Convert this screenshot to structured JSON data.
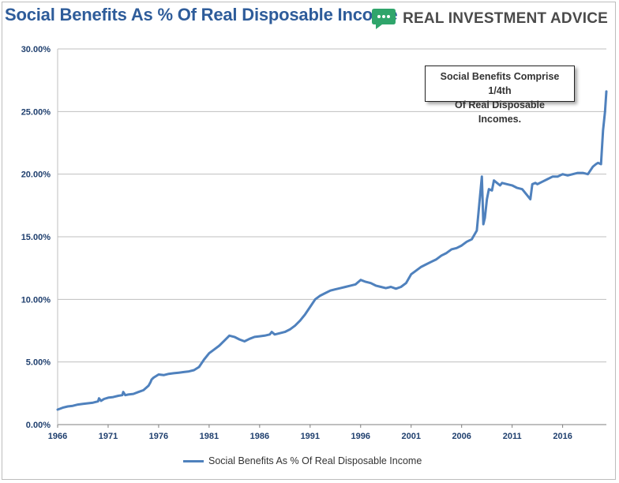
{
  "header": {
    "title": "Social Benefits As % Of Real Disposable Income",
    "brand": "REAL INVESTMENT ADVICE",
    "brand_icon": "chat-bubble-icon"
  },
  "annotation": {
    "line1": "Social Benefits Comprise 1/4th",
    "line2": "Of Real Disposable Incomes."
  },
  "colors": {
    "title": "#2e5c9a",
    "series": "#4f81bd",
    "grid": "#bfbfbf",
    "tick_text": "#1f3f6e",
    "logo_green": "#2fa56b"
  },
  "chart_data": {
    "type": "line",
    "title": "Social Benefits As % Of Real Disposable Income",
    "xlabel": "",
    "ylabel": "",
    "xlim": [
      1966,
      2020.33
    ],
    "ylim": [
      0,
      30
    ],
    "x_ticks": [
      "1966",
      "1971",
      "1976",
      "1981",
      "1986",
      "1991",
      "1996",
      "2001",
      "2006",
      "2011",
      "2016"
    ],
    "y_ticks": [
      "0.00%",
      "5.00%",
      "10.00%",
      "15.00%",
      "20.00%",
      "25.00%",
      "30.00%"
    ],
    "grid": "horizontal",
    "legend": "bottom",
    "series": [
      {
        "name": "Social Benefits As % Of Real Disposable Income",
        "x": [
          1966.0,
          1966.5,
          1967.0,
          1967.5,
          1968.0,
          1968.5,
          1969.0,
          1969.5,
          1970.0,
          1970.1,
          1970.3,
          1970.6,
          1971.0,
          1971.5,
          1972.0,
          1972.4,
          1972.5,
          1972.7,
          1973.0,
          1973.5,
          1974.0,
          1974.5,
          1975.0,
          1975.2,
          1975.3,
          1975.5,
          1976.0,
          1976.5,
          1977.0,
          1977.5,
          1978.0,
          1978.5,
          1979.0,
          1979.5,
          1980.0,
          1980.5,
          1981.0,
          1981.5,
          1982.0,
          1982.5,
          1983.0,
          1983.5,
          1984.0,
          1984.5,
          1985.0,
          1985.5,
          1986.0,
          1986.5,
          1987.0,
          1987.2,
          1987.5,
          1988.0,
          1988.5,
          1989.0,
          1989.5,
          1990.0,
          1990.5,
          1991.0,
          1991.5,
          1992.0,
          1992.5,
          1993.0,
          1993.5,
          1994.0,
          1994.5,
          1995.0,
          1995.5,
          1996.0,
          1996.5,
          1997.0,
          1997.5,
          1998.0,
          1998.5,
          1999.0,
          1999.5,
          2000.0,
          2000.5,
          2001.0,
          2001.5,
          2002.0,
          2002.5,
          2003.0,
          2003.5,
          2004.0,
          2004.5,
          2005.0,
          2005.5,
          2006.0,
          2006.5,
          2007.0,
          2007.5,
          2008.0,
          2008.15,
          2008.3,
          2008.5,
          2008.7,
          2009.0,
          2009.2,
          2009.5,
          2009.8,
          2010.0,
          2010.5,
          2011.0,
          2011.5,
          2012.0,
          2012.5,
          2012.8,
          2013.0,
          2013.3,
          2013.5,
          2014.0,
          2014.5,
          2015.0,
          2015.5,
          2016.0,
          2016.5,
          2017.0,
          2017.5,
          2018.0,
          2018.5,
          2019.0,
          2019.3,
          2019.5,
          2019.8,
          2020.0,
          2020.2,
          2020.33
        ],
        "y": [
          1.2,
          1.35,
          1.45,
          1.5,
          1.6,
          1.65,
          1.7,
          1.75,
          1.85,
          2.1,
          1.9,
          2.05,
          2.15,
          2.2,
          2.3,
          2.35,
          2.6,
          2.35,
          2.4,
          2.45,
          2.6,
          2.75,
          3.1,
          3.4,
          3.6,
          3.75,
          4.0,
          3.95,
          4.05,
          4.1,
          4.15,
          4.2,
          4.25,
          4.35,
          4.6,
          5.2,
          5.7,
          6.0,
          6.3,
          6.7,
          7.1,
          7.0,
          6.8,
          6.65,
          6.85,
          7.0,
          7.05,
          7.1,
          7.2,
          7.4,
          7.2,
          7.3,
          7.4,
          7.6,
          7.9,
          8.3,
          8.8,
          9.4,
          10.0,
          10.3,
          10.5,
          10.7,
          10.8,
          10.9,
          11.0,
          11.1,
          11.2,
          11.55,
          11.4,
          11.3,
          11.1,
          11.0,
          10.9,
          11.0,
          10.85,
          11.0,
          11.3,
          12.0,
          12.3,
          12.6,
          12.8,
          13.0,
          13.2,
          13.5,
          13.7,
          14.0,
          14.1,
          14.3,
          14.6,
          14.8,
          15.5,
          19.8,
          16.0,
          16.5,
          18.0,
          18.8,
          18.7,
          19.5,
          19.3,
          19.1,
          19.3,
          19.2,
          19.1,
          18.9,
          18.8,
          18.3,
          18.0,
          19.2,
          19.3,
          19.2,
          19.4,
          19.6,
          19.8,
          19.8,
          20.0,
          19.9,
          20.0,
          20.1,
          20.1,
          20.0,
          20.6,
          20.8,
          20.9,
          20.8,
          23.5,
          25.0,
          26.6
        ]
      }
    ]
  }
}
